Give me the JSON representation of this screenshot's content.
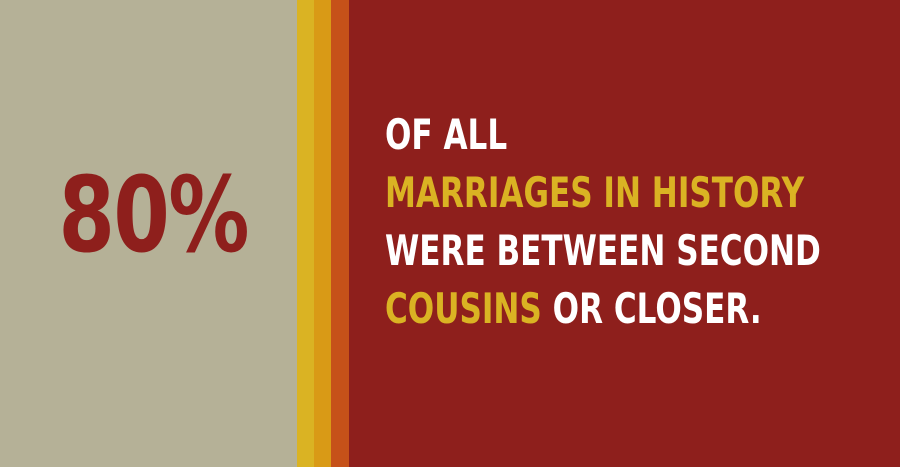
{
  "stat": {
    "value": "80%"
  },
  "message": {
    "line1": "OF ALL",
    "line2": "MARRIAGES IN HISTORY",
    "line3": "WERE BETWEEN SECOND",
    "line4_highlight": "COUSINS",
    "line4_rest": " OR CLOSER."
  },
  "colors": {
    "left_panel": "#b5b197",
    "right_panel": "#8e1f1c",
    "stripe_yellow": "#dab323",
    "stripe_orange": "#d99a16",
    "stripe_red_orange": "#c65119",
    "highlight_text": "#dab323",
    "body_text": "#ffffff",
    "stat_text": "#8e1f1c"
  }
}
